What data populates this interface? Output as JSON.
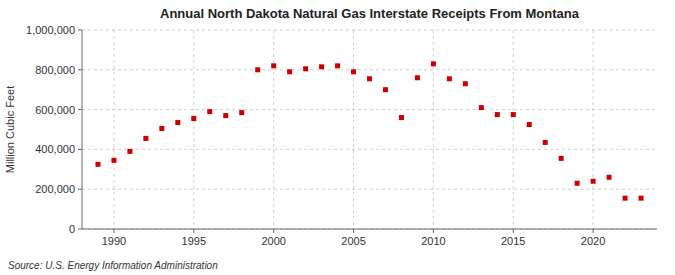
{
  "chart_data": {
    "type": "scatter",
    "title": "Annual North Dakota Natural Gas Interstate Receipts From Montana",
    "ylabel": "Million Cubic Feet",
    "source": "Source: U.S. Energy Information Administration",
    "x": [
      1989,
      1990,
      1991,
      1992,
      1993,
      1994,
      1995,
      1996,
      1997,
      1998,
      1999,
      2000,
      2001,
      2002,
      2003,
      2004,
      2005,
      2006,
      2007,
      2008,
      2009,
      2010,
      2011,
      2012,
      2013,
      2014,
      2015,
      2016,
      2017,
      2018,
      2019,
      2020,
      2021,
      2022,
      2023
    ],
    "values": [
      325000,
      345000,
      390000,
      455000,
      505000,
      535000,
      555000,
      590000,
      570000,
      585000,
      800000,
      820000,
      790000,
      805000,
      815000,
      820000,
      790000,
      755000,
      700000,
      560000,
      760000,
      830000,
      755000,
      730000,
      610000,
      575000,
      575000,
      525000,
      435000,
      355000,
      230000,
      240000,
      260000,
      155000,
      155000
    ],
    "color": "#cc0000",
    "marker": "square",
    "xlim": [
      1988,
      2024
    ],
    "ylim": [
      0,
      1000000
    ],
    "xticks": [
      1990,
      1995,
      2000,
      2005,
      2010,
      2015,
      2020
    ],
    "yticks": [
      0,
      {
        "value": 200000,
        "label": "200,000"
      },
      {
        "value": 400000,
        "label": "400,000"
      },
      {
        "value": 600000,
        "label": "600,000"
      },
      {
        "value": 800000,
        "label": "800,000"
      },
      {
        "value": 1000000,
        "label": "1,000,000"
      }
    ],
    "grid": true
  }
}
